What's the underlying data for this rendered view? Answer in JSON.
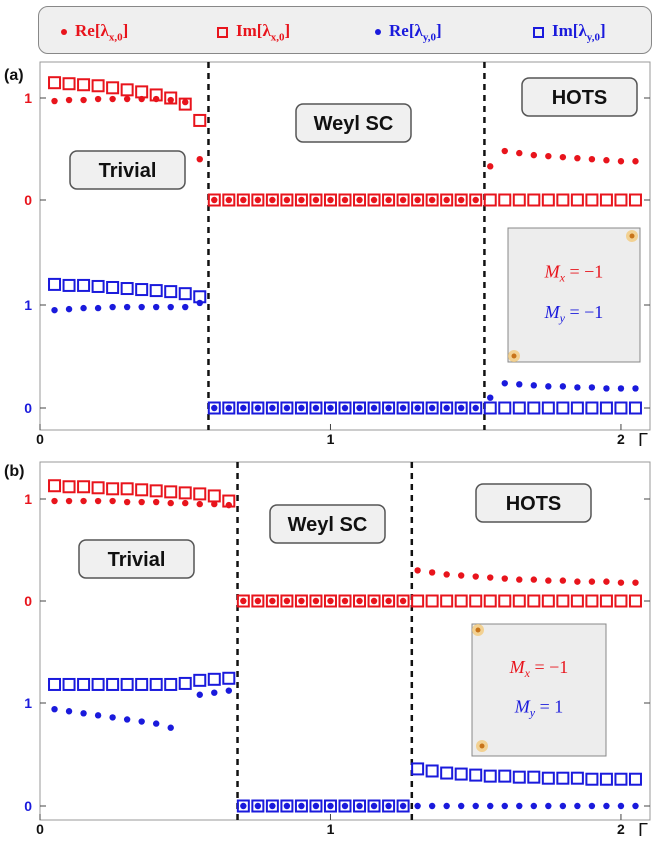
{
  "colors": {
    "red": "#e8141c",
    "blue": "#1a1adc",
    "panel_box": "#f0f0f0",
    "inset_bg": "#ededed"
  },
  "legend": [
    {
      "marker": "dot",
      "color": "red",
      "label": "Re[λ",
      "sub": "x,0",
      "close": "]"
    },
    {
      "marker": "square",
      "color": "red",
      "label": "Im[λ",
      "sub": "x,0",
      "close": "]"
    },
    {
      "marker": "dot",
      "color": "blue",
      "label": "Re[λ",
      "sub": "y,0",
      "close": "]"
    },
    {
      "marker": "square",
      "color": "blue",
      "label": "Im[λ",
      "sub": "y,0",
      "close": "]"
    }
  ],
  "chart_data": [
    {
      "type": "scatter",
      "panel_label": "(a)",
      "x_ticks": [
        "0",
        "1",
        "2"
      ],
      "x_symbol": "Γ",
      "xlim": [
        0,
        2.1
      ],
      "red_ticks": [
        "1",
        "0"
      ],
      "blue_ticks": [
        "1",
        "0"
      ],
      "phase_boundaries": [
        0.58,
        1.53
      ],
      "phase_labels": [
        "Trivial",
        "Weyl SC",
        "HOTS"
      ],
      "inset": {
        "mx_label": "M",
        "mx_sub": "x",
        "mx_value": "= −1",
        "my_label": "M",
        "my_sub": "y",
        "my_value": "= −1"
      },
      "series": [
        {
          "name": "Re[λx,0]",
          "color": "red",
          "marker": "dot",
          "x": [
            0.05,
            0.1,
            0.15,
            0.2,
            0.25,
            0.3,
            0.35,
            0.4,
            0.45,
            0.5,
            0.55,
            0.6,
            0.65,
            0.7,
            0.75,
            0.8,
            0.85,
            0.9,
            0.95,
            1.0,
            1.05,
            1.1,
            1.15,
            1.2,
            1.25,
            1.3,
            1.35,
            1.4,
            1.45,
            1.5,
            1.55,
            1.6,
            1.65,
            1.7,
            1.75,
            1.8,
            1.85,
            1.9,
            1.95,
            2.0,
            2.05
          ],
          "y": [
            0.97,
            0.98,
            0.98,
            0.99,
            0.99,
            0.99,
            0.99,
            0.99,
            0.98,
            0.96,
            0.4,
            0.0,
            0.0,
            0.0,
            0.0,
            0.0,
            0.0,
            0.0,
            0.0,
            0.0,
            0.0,
            0.0,
            0.0,
            0.0,
            0.0,
            0.0,
            0.0,
            0.0,
            0.0,
            0.0,
            0.33,
            0.48,
            0.46,
            0.44,
            0.43,
            0.42,
            0.41,
            0.4,
            0.39,
            0.38,
            0.38
          ]
        },
        {
          "name": "Im[λx,0]",
          "color": "red",
          "marker": "square",
          "x": [
            0.05,
            0.1,
            0.15,
            0.2,
            0.25,
            0.3,
            0.35,
            0.4,
            0.45,
            0.5,
            0.55,
            0.6,
            0.65,
            0.7,
            0.75,
            0.8,
            0.85,
            0.9,
            0.95,
            1.0,
            1.05,
            1.1,
            1.15,
            1.2,
            1.25,
            1.3,
            1.35,
            1.4,
            1.45,
            1.5,
            1.55,
            1.6,
            1.65,
            1.7,
            1.75,
            1.8,
            1.85,
            1.9,
            1.95,
            2.0,
            2.05
          ],
          "y": [
            1.15,
            1.14,
            1.13,
            1.12,
            1.1,
            1.08,
            1.06,
            1.03,
            1.0,
            0.94,
            0.78,
            0.0,
            0.0,
            0.0,
            0.0,
            0.0,
            0.0,
            0.0,
            0.0,
            0.0,
            0.0,
            0.0,
            0.0,
            0.0,
            0.0,
            0.0,
            0.0,
            0.0,
            0.0,
            0.0,
            0.0,
            0.0,
            0.0,
            0.0,
            0.0,
            0.0,
            0.0,
            0.0,
            0.0,
            0.0,
            0.0
          ]
        },
        {
          "name": "Re[λy,0]",
          "color": "blue",
          "marker": "dot",
          "x": [
            0.05,
            0.1,
            0.15,
            0.2,
            0.25,
            0.3,
            0.35,
            0.4,
            0.45,
            0.5,
            0.55,
            0.6,
            0.65,
            0.7,
            0.75,
            0.8,
            0.85,
            0.9,
            0.95,
            1.0,
            1.05,
            1.1,
            1.15,
            1.2,
            1.25,
            1.3,
            1.35,
            1.4,
            1.45,
            1.5,
            1.55,
            1.6,
            1.65,
            1.7,
            1.75,
            1.8,
            1.85,
            1.9,
            1.95,
            2.0,
            2.05
          ],
          "y": [
            0.95,
            0.96,
            0.97,
            0.97,
            0.98,
            0.98,
            0.98,
            0.98,
            0.98,
            0.98,
            1.02,
            0.0,
            0.0,
            0.0,
            0.0,
            0.0,
            0.0,
            0.0,
            0.0,
            0.0,
            0.0,
            0.0,
            0.0,
            0.0,
            0.0,
            0.0,
            0.0,
            0.0,
            0.0,
            0.0,
            0.1,
            0.24,
            0.23,
            0.22,
            0.21,
            0.21,
            0.2,
            0.2,
            0.19,
            0.19,
            0.19
          ]
        },
        {
          "name": "Im[λy,0]",
          "color": "blue",
          "marker": "square",
          "x": [
            0.05,
            0.1,
            0.15,
            0.2,
            0.25,
            0.3,
            0.35,
            0.4,
            0.45,
            0.5,
            0.55,
            0.6,
            0.65,
            0.7,
            0.75,
            0.8,
            0.85,
            0.9,
            0.95,
            1.0,
            1.05,
            1.1,
            1.15,
            1.2,
            1.25,
            1.3,
            1.35,
            1.4,
            1.45,
            1.5,
            1.55,
            1.6,
            1.65,
            1.7,
            1.75,
            1.8,
            1.85,
            1.9,
            1.95,
            2.0,
            2.05
          ],
          "y": [
            1.2,
            1.19,
            1.19,
            1.18,
            1.17,
            1.16,
            1.15,
            1.14,
            1.13,
            1.11,
            1.08,
            0.0,
            0.0,
            0.0,
            0.0,
            0.0,
            0.0,
            0.0,
            0.0,
            0.0,
            0.0,
            0.0,
            0.0,
            0.0,
            0.0,
            0.0,
            0.0,
            0.0,
            0.0,
            0.0,
            0.0,
            0.0,
            0.0,
            0.0,
            0.0,
            0.0,
            0.0,
            0.0,
            0.0,
            0.0,
            0.0
          ]
        }
      ]
    },
    {
      "type": "scatter",
      "panel_label": "(b)",
      "x_ticks": [
        "0",
        "1",
        "2"
      ],
      "x_symbol": "Γ",
      "xlim": [
        0,
        2.1
      ],
      "red_ticks": [
        "1",
        "0"
      ],
      "blue_ticks": [
        "1",
        "0"
      ],
      "phase_boundaries": [
        0.68,
        1.28
      ],
      "phase_labels": [
        "Trivial",
        "Weyl SC",
        "HOTS"
      ],
      "inset": {
        "mx_label": "M",
        "mx_sub": "x",
        "mx_value": "= −1",
        "my_label": "M",
        "my_sub": "y",
        "my_value": "= 1"
      },
      "series": [
        {
          "name": "Re[λx,0]",
          "color": "red",
          "marker": "dot",
          "x": [
            0.05,
            0.1,
            0.15,
            0.2,
            0.25,
            0.3,
            0.35,
            0.4,
            0.45,
            0.5,
            0.55,
            0.6,
            0.65,
            0.7,
            0.75,
            0.8,
            0.85,
            0.9,
            0.95,
            1.0,
            1.05,
            1.1,
            1.15,
            1.2,
            1.25,
            1.3,
            1.35,
            1.4,
            1.45,
            1.5,
            1.55,
            1.6,
            1.65,
            1.7,
            1.75,
            1.8,
            1.85,
            1.9,
            1.95,
            2.0,
            2.05
          ],
          "y": [
            0.98,
            0.98,
            0.98,
            0.98,
            0.98,
            0.97,
            0.97,
            0.97,
            0.96,
            0.96,
            0.95,
            0.95,
            0.94,
            0.0,
            0.0,
            0.0,
            0.0,
            0.0,
            0.0,
            0.0,
            0.0,
            0.0,
            0.0,
            0.0,
            0.0,
            0.3,
            0.28,
            0.26,
            0.25,
            0.24,
            0.23,
            0.22,
            0.21,
            0.21,
            0.2,
            0.2,
            0.19,
            0.19,
            0.19,
            0.18,
            0.18
          ]
        },
        {
          "name": "Im[λx,0]",
          "color": "red",
          "marker": "square",
          "x": [
            0.05,
            0.1,
            0.15,
            0.2,
            0.25,
            0.3,
            0.35,
            0.4,
            0.45,
            0.5,
            0.55,
            0.6,
            0.65,
            0.7,
            0.75,
            0.8,
            0.85,
            0.9,
            0.95,
            1.0,
            1.05,
            1.1,
            1.15,
            1.2,
            1.25,
            1.3,
            1.35,
            1.4,
            1.45,
            1.5,
            1.55,
            1.6,
            1.65,
            1.7,
            1.75,
            1.8,
            1.85,
            1.9,
            1.95,
            2.0,
            2.05
          ],
          "y": [
            1.13,
            1.12,
            1.12,
            1.11,
            1.1,
            1.1,
            1.09,
            1.08,
            1.07,
            1.06,
            1.05,
            1.03,
            0.98,
            0.0,
            0.0,
            0.0,
            0.0,
            0.0,
            0.0,
            0.0,
            0.0,
            0.0,
            0.0,
            0.0,
            0.0,
            0.0,
            0.0,
            0.0,
            0.0,
            0.0,
            0.0,
            0.0,
            0.0,
            0.0,
            0.0,
            0.0,
            0.0,
            0.0,
            0.0,
            0.0,
            0.0
          ]
        },
        {
          "name": "Re[λy,0]",
          "color": "blue",
          "marker": "dot",
          "x": [
            0.05,
            0.1,
            0.15,
            0.2,
            0.25,
            0.3,
            0.35,
            0.4,
            0.45,
            0.5,
            0.55,
            0.6,
            0.65,
            0.7,
            0.75,
            0.8,
            0.85,
            0.9,
            0.95,
            1.0,
            1.05,
            1.1,
            1.15,
            1.2,
            1.25,
            1.3,
            1.35,
            1.4,
            1.45,
            1.5,
            1.55,
            1.6,
            1.65,
            1.7,
            1.75,
            1.8,
            1.85,
            1.9,
            1.95,
            2.0,
            2.05
          ],
          "y": [
            0.94,
            0.92,
            0.9,
            0.88,
            0.86,
            0.84,
            0.82,
            0.8,
            0.76,
            null,
            1.08,
            1.1,
            1.12,
            0.0,
            0.0,
            0.0,
            0.0,
            0.0,
            0.0,
            0.0,
            0.0,
            0.0,
            0.0,
            0.0,
            0.0,
            0.0,
            0.0,
            0.0,
            0.0,
            0.0,
            0.0,
            0.0,
            0.0,
            0.0,
            0.0,
            0.0,
            0.0,
            0.0,
            0.0,
            0.0,
            0.0
          ]
        },
        {
          "name": "Im[λy,0]",
          "color": "blue",
          "marker": "square",
          "x": [
            0.05,
            0.1,
            0.15,
            0.2,
            0.25,
            0.3,
            0.35,
            0.4,
            0.45,
            0.5,
            0.55,
            0.6,
            0.65,
            0.7,
            0.75,
            0.8,
            0.85,
            0.9,
            0.95,
            1.0,
            1.05,
            1.1,
            1.15,
            1.2,
            1.25,
            1.3,
            1.35,
            1.4,
            1.45,
            1.5,
            1.55,
            1.6,
            1.65,
            1.7,
            1.75,
            1.8,
            1.85,
            1.9,
            1.95,
            2.0,
            2.05
          ],
          "y": [
            1.18,
            1.18,
            1.18,
            1.18,
            1.18,
            1.18,
            1.18,
            1.18,
            1.18,
            1.19,
            1.22,
            1.23,
            1.24,
            0.0,
            0.0,
            0.0,
            0.0,
            0.0,
            0.0,
            0.0,
            0.0,
            0.0,
            0.0,
            0.0,
            0.0,
            0.36,
            0.34,
            0.32,
            0.31,
            0.3,
            0.29,
            0.29,
            0.28,
            0.28,
            0.27,
            0.27,
            0.27,
            0.26,
            0.26,
            0.26,
            0.26
          ]
        }
      ]
    }
  ]
}
